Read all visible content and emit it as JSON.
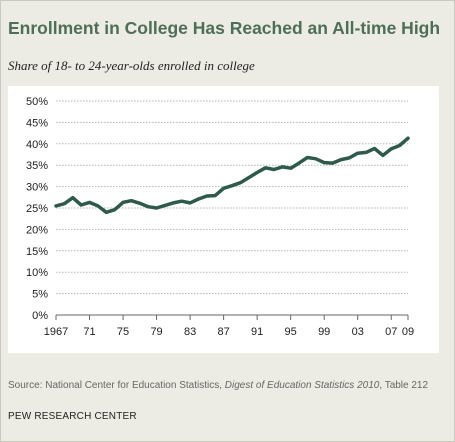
{
  "header": {
    "title": "Enrollment in College Has Reached an All-time High",
    "subtitle": "Share of 18- to 24-year-olds enrolled in college"
  },
  "footer": {
    "source_prefix": "Source: National Center for Education Statistics, ",
    "source_italic": "Digest of Education Statistics 2010",
    "source_suffix": ", Table 212",
    "organization": "PEW RESEARCH CENTER"
  },
  "colors": {
    "background": "#ecece4",
    "title": "#4e6e58",
    "line": "#2e5a4a",
    "grid": "#b5b5b5"
  },
  "chart_data": {
    "type": "line",
    "title": "",
    "xlabel": "",
    "ylabel": "",
    "grid": true,
    "ylim": [
      0,
      50
    ],
    "xlim": [
      1967,
      2009
    ],
    "y_ticks": [
      0,
      5,
      10,
      15,
      20,
      25,
      30,
      35,
      40,
      45,
      50
    ],
    "y_tick_labels": [
      "0%",
      "5%",
      "10%",
      "15%",
      "20%",
      "25%",
      "30%",
      "35%",
      "40%",
      "45%",
      "50%"
    ],
    "x_ticks": [
      1967,
      1971,
      1975,
      1979,
      1983,
      1987,
      1991,
      1995,
      1999,
      2003,
      2007,
      2009
    ],
    "x_tick_labels": [
      "1967",
      "71",
      "75",
      "79",
      "83",
      "87",
      "91",
      "95",
      "99",
      "03",
      "07",
      "09"
    ],
    "series": [
      {
        "x": [
          1967,
          1968,
          1969,
          1970,
          1971,
          1972,
          1973,
          1974,
          1975,
          1976,
          1977,
          1978,
          1979,
          1980,
          1981,
          1982,
          1983,
          1984,
          1985,
          1986,
          1987,
          1988,
          1989,
          1990,
          1991,
          1992,
          1993,
          1994,
          1995,
          1996,
          1997,
          1998,
          1999,
          2000,
          2001,
          2002,
          2003,
          2004,
          2005,
          2006,
          2007,
          2008,
          2009
        ],
        "y": [
          25.5,
          26.0,
          27.4,
          25.7,
          26.3,
          25.5,
          24.0,
          24.6,
          26.3,
          26.7,
          26.1,
          25.3,
          25.0,
          25.6,
          26.2,
          26.6,
          26.2,
          27.1,
          27.8,
          27.9,
          29.6,
          30.2,
          30.9,
          32.1,
          33.3,
          34.4,
          34.0,
          34.6,
          34.3,
          35.5,
          36.8,
          36.5,
          35.6,
          35.5,
          36.3,
          36.7,
          37.8,
          38.0,
          38.9,
          37.3,
          38.8,
          39.6,
          41.3
        ]
      }
    ]
  }
}
